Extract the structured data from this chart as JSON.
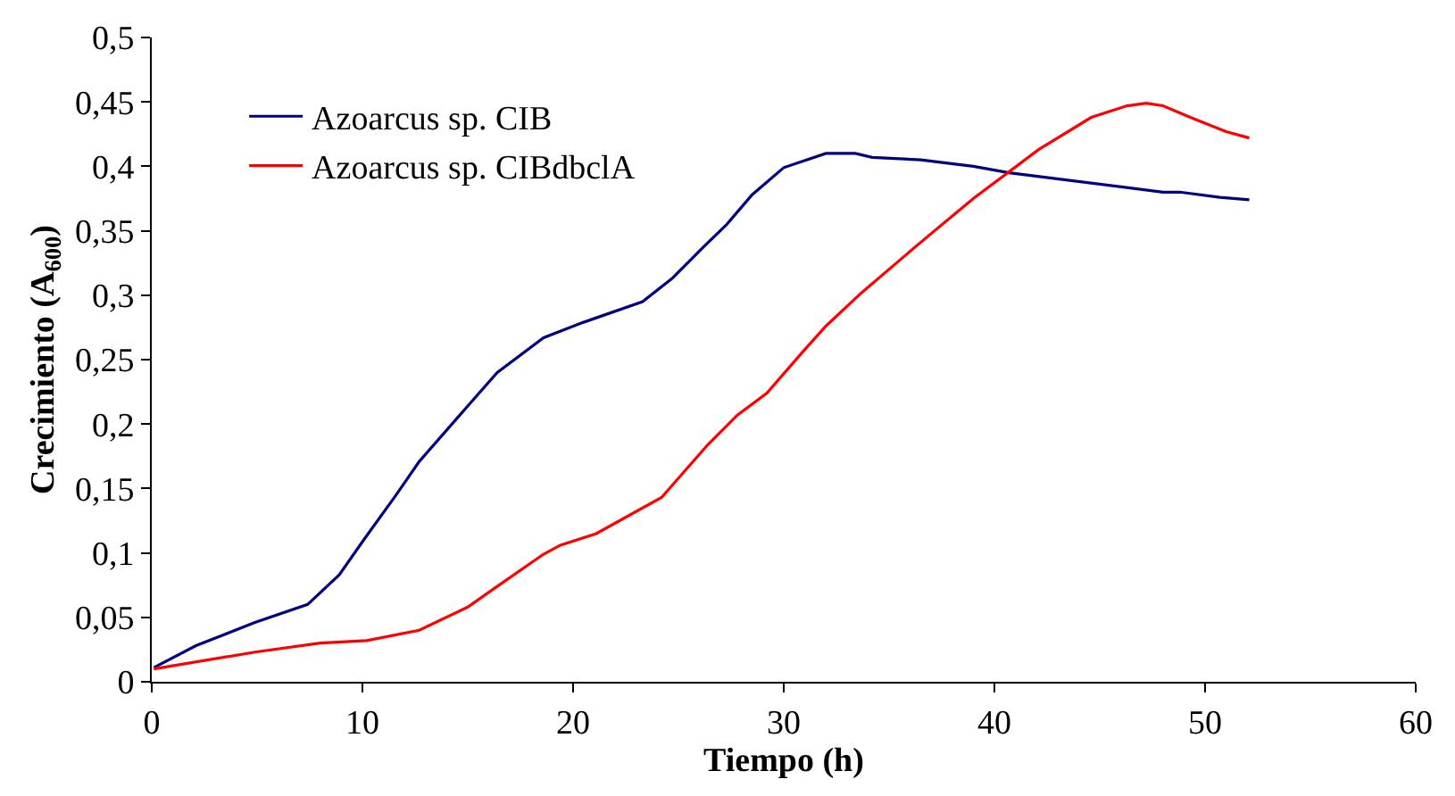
{
  "chart_data": {
    "type": "line",
    "xlabel": "Tiempo (h)",
    "ylabel": "Crecimiento (A$_{600}$)",
    "xlim": [
      0,
      60
    ],
    "xticks": [
      0,
      10,
      20,
      30,
      40,
      50,
      60
    ],
    "ylim": [
      0,
      0.5
    ],
    "yticks": [
      0,
      {
        "value": 0.05,
        "label": "0,05"
      },
      {
        "value": 0.1,
        "label": "0,1"
      },
      {
        "value": 0.15,
        "label": "0,15"
      },
      {
        "value": 0.2,
        "label": "0,2"
      },
      {
        "value": 0.25,
        "label": "0,25"
      },
      {
        "value": 0.3,
        "label": "0,3"
      },
      {
        "value": 0.35,
        "label": "0,35"
      },
      {
        "value": 0.4,
        "label": "0,4"
      },
      {
        "value": 0.45,
        "label": "0,45"
      },
      {
        "value": 0.5,
        "label": "0,5"
      }
    ],
    "legend": "top left",
    "marker": "none",
    "line_style": "solid",
    "series": [
      {
        "name": "Azoarcus sp. CIB",
        "color": "#000080",
        "x": [
          0.1,
          2.1,
          4.9,
          7.4,
          8.9,
          10.1,
          11.6,
          12.7,
          15,
          16.4,
          18.6,
          20.5,
          23.3,
          24.7,
          26.1,
          27.3,
          28.5,
          30,
          32,
          33.4,
          34.2,
          36.5,
          39,
          40.7,
          48,
          48.8,
          50.7,
          52.1
        ],
        "values": [
          0.011,
          0.028,
          0.046,
          0.06,
          0.083,
          0.111,
          0.145,
          0.171,
          0.214,
          0.24,
          0.267,
          0.279,
          0.295,
          0.313,
          0.336,
          0.355,
          0.378,
          0.399,
          0.41,
          0.41,
          0.407,
          0.405,
          0.4,
          0.395,
          0.38,
          0.38,
          0.376,
          0.374
        ]
      },
      {
        "name": "Azoarcus sp. CIBdbclA",
        "color": "#ff0000",
        "x": [
          0.1,
          4.9,
          8,
          10.2,
          12.7,
          15,
          16.4,
          18.6,
          19.4,
          21.1,
          24.2,
          26.4,
          27.8,
          29.2,
          30.9,
          32,
          33.7,
          36.5,
          39,
          42.1,
          44.6,
          46.3,
          47.2,
          48,
          49.3,
          51,
          52.1
        ],
        "values": [
          0.01,
          0.023,
          0.03,
          0.032,
          0.04,
          0.058,
          0.074,
          0.099,
          0.106,
          0.115,
          0.143,
          0.184,
          0.207,
          0.224,
          0.256,
          0.276,
          0.302,
          0.341,
          0.375,
          0.413,
          0.438,
          0.447,
          0.449,
          0.447,
          0.438,
          0.427,
          0.422
        ]
      }
    ]
  }
}
